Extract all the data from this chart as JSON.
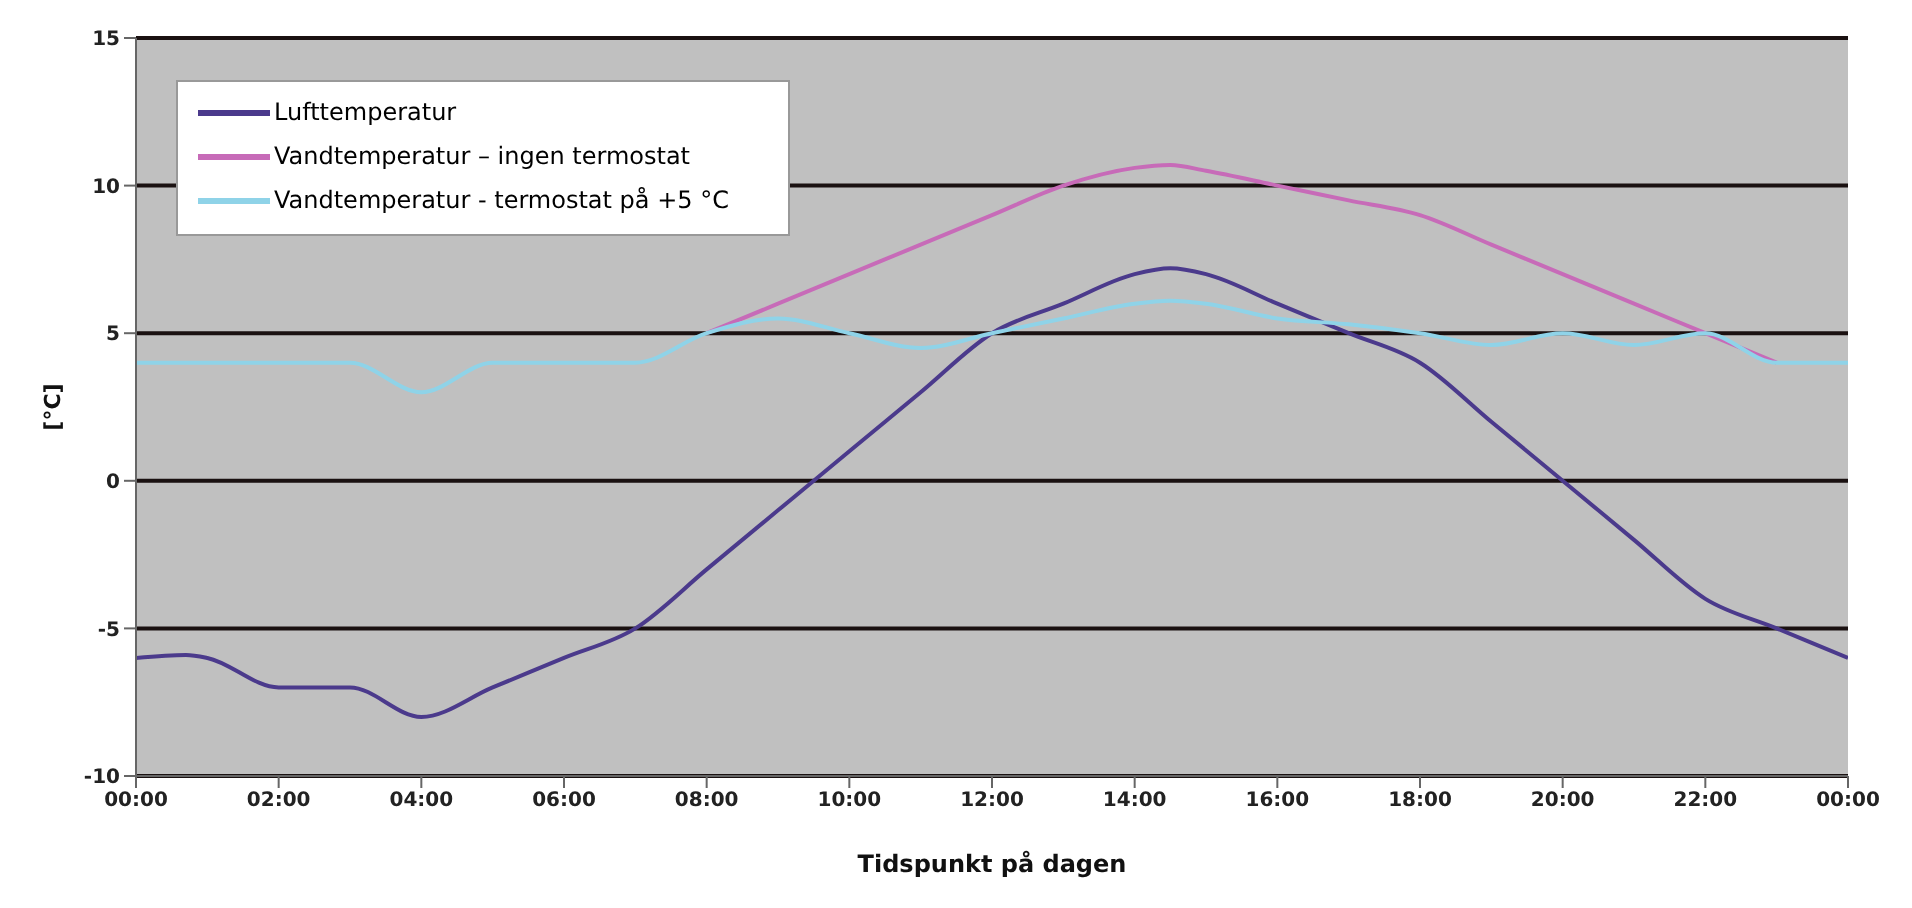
{
  "chart_data": {
    "type": "line",
    "xlabel": "Tidspunkt på dagen",
    "ylabel": "[°C]",
    "xlim": [
      0,
      24
    ],
    "xticks": [
      {
        "value": 0,
        "label": "00:00"
      },
      {
        "value": 2,
        "label": "02:00"
      },
      {
        "value": 4,
        "label": "04:00"
      },
      {
        "value": 6,
        "label": "06:00"
      },
      {
        "value": 8,
        "label": "08:00"
      },
      {
        "value": 10,
        "label": "10:00"
      },
      {
        "value": 12,
        "label": "12:00"
      },
      {
        "value": 14,
        "label": "14:00"
      },
      {
        "value": 16,
        "label": "16:00"
      },
      {
        "value": 18,
        "label": "18:00"
      },
      {
        "value": 20,
        "label": "20:00"
      },
      {
        "value": 22,
        "label": "22:00"
      },
      {
        "value": 24,
        "label": "00:00"
      }
    ],
    "ylim": [
      -10,
      15
    ],
    "yticks": [
      -10,
      -5,
      0,
      5,
      10,
      15
    ],
    "grid": "y",
    "legend": "top left",
    "marker": "none",
    "series": [
      {
        "name": "Lufttemperatur",
        "color": "#4b3a8c",
        "x": [
          0,
          0.7,
          1,
          2,
          3,
          4,
          5,
          6,
          7,
          8,
          9,
          10,
          11,
          12,
          13,
          14,
          14.5,
          15,
          16,
          17,
          18,
          19,
          20,
          21,
          22,
          23,
          24
        ],
        "values": [
          -6,
          -5.9,
          -6,
          -7,
          -7,
          -8,
          -7,
          -6,
          -5,
          -3,
          -1,
          1,
          3,
          5,
          6,
          7,
          7.2,
          7,
          6,
          5,
          4,
          2,
          0,
          -2,
          -4,
          -5,
          -6
        ]
      },
      {
        "name": "Vandtemperatur – ingen termostat",
        "color": "#c76bb8",
        "x": [
          8,
          9,
          10,
          11,
          12,
          13,
          14,
          14.5,
          15,
          16,
          17,
          18,
          19,
          20,
          21,
          22,
          23
        ],
        "values": [
          5,
          6,
          7,
          8,
          9,
          10,
          10.6,
          10.7,
          10.5,
          10,
          9.5,
          9,
          8,
          7,
          6,
          5,
          4
        ]
      },
      {
        "name": "Vandtemperatur - termostat på +5 °C",
        "color": "#8fd3e8",
        "x": [
          0,
          1,
          2,
          3,
          4,
          5,
          6,
          7,
          8,
          9,
          10,
          11,
          12,
          13,
          14,
          14.5,
          15,
          16,
          17,
          18,
          19,
          20,
          21,
          22,
          23,
          24
        ],
        "values": [
          4,
          4,
          4,
          4,
          3,
          4,
          4,
          4,
          5,
          5.5,
          5,
          4.5,
          5,
          5.5,
          6,
          6.1,
          6,
          5.5,
          5.3,
          5,
          4.6,
          5,
          4.6,
          5,
          4,
          4
        ]
      }
    ]
  }
}
